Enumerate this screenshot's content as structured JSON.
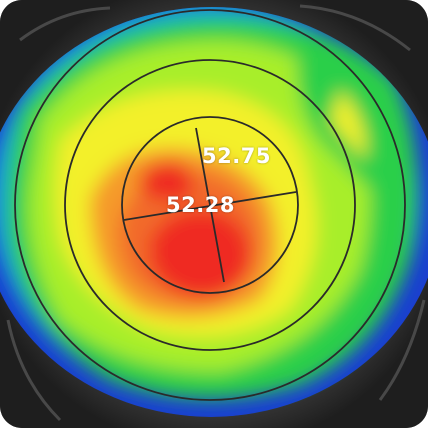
{
  "map": {
    "values": [
      "52.75",
      "52.28"
    ],
    "colors": {
      "background": "#3a3a3a",
      "blue": "#1a3fd0",
      "cyan": "#14a0d8",
      "green": "#2ccf4a",
      "lime": "#a8ee2c",
      "yellow": "#f3f02c",
      "orange": "#f59a2a",
      "orange_red": "#f26b2c",
      "red": "#ef2a24",
      "ring_line": "#2a2a2a"
    }
  }
}
